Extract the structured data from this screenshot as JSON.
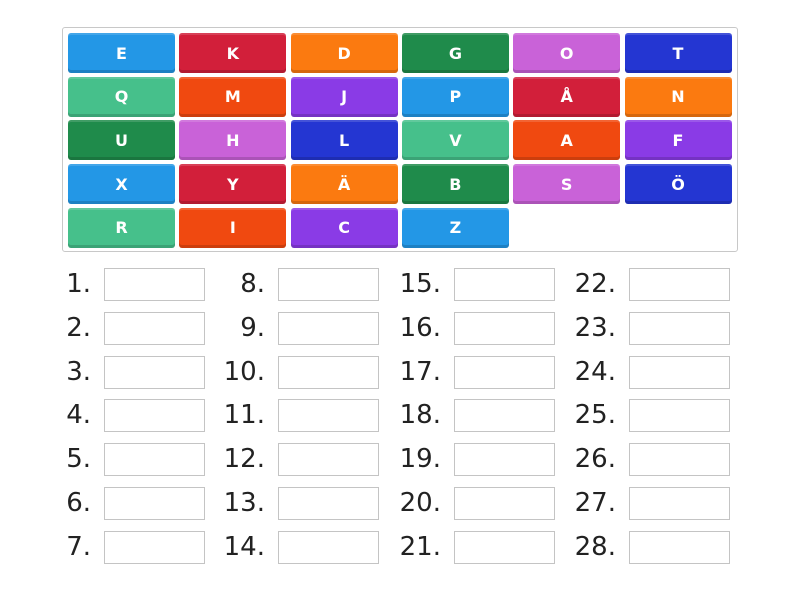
{
  "colors": {
    "blue": "#2397e6",
    "red": "#d21f3a",
    "orange": "#fb7a10",
    "darkgreen": "#1f8b4b",
    "pink": "#c962d8",
    "navy": "#2436d2",
    "mint": "#46c08b",
    "redorange": "#f04910",
    "purple": "#8a3be6"
  },
  "tiles": [
    {
      "letter": "E",
      "color": "blue"
    },
    {
      "letter": "K",
      "color": "red"
    },
    {
      "letter": "D",
      "color": "orange"
    },
    {
      "letter": "G",
      "color": "darkgreen"
    },
    {
      "letter": "O",
      "color": "pink"
    },
    {
      "letter": "T",
      "color": "navy"
    },
    {
      "letter": "Q",
      "color": "mint"
    },
    {
      "letter": "M",
      "color": "redorange"
    },
    {
      "letter": "J",
      "color": "purple"
    },
    {
      "letter": "P",
      "color": "blue"
    },
    {
      "letter": "Å",
      "color": "red"
    },
    {
      "letter": "N",
      "color": "orange"
    },
    {
      "letter": "U",
      "color": "darkgreen"
    },
    {
      "letter": "H",
      "color": "pink"
    },
    {
      "letter": "L",
      "color": "navy"
    },
    {
      "letter": "V",
      "color": "mint"
    },
    {
      "letter": "A",
      "color": "redorange"
    },
    {
      "letter": "F",
      "color": "purple"
    },
    {
      "letter": "X",
      "color": "blue"
    },
    {
      "letter": "Y",
      "color": "red"
    },
    {
      "letter": "Ä",
      "color": "orange"
    },
    {
      "letter": "B",
      "color": "darkgreen"
    },
    {
      "letter": "S",
      "color": "pink"
    },
    {
      "letter": "Ö",
      "color": "navy"
    },
    {
      "letter": "R",
      "color": "mint"
    },
    {
      "letter": "I",
      "color": "redorange"
    },
    {
      "letter": "C",
      "color": "purple"
    },
    {
      "letter": "Z",
      "color": "blue"
    }
  ],
  "slots": [
    "1.",
    "2.",
    "3.",
    "4.",
    "5.",
    "6.",
    "7.",
    "8.",
    "9.",
    "10.",
    "11.",
    "12.",
    "13.",
    "14.",
    "15.",
    "16.",
    "17.",
    "18.",
    "19.",
    "20.",
    "21.",
    "22.",
    "23.",
    "24.",
    "25.",
    "26.",
    "27.",
    "28."
  ]
}
